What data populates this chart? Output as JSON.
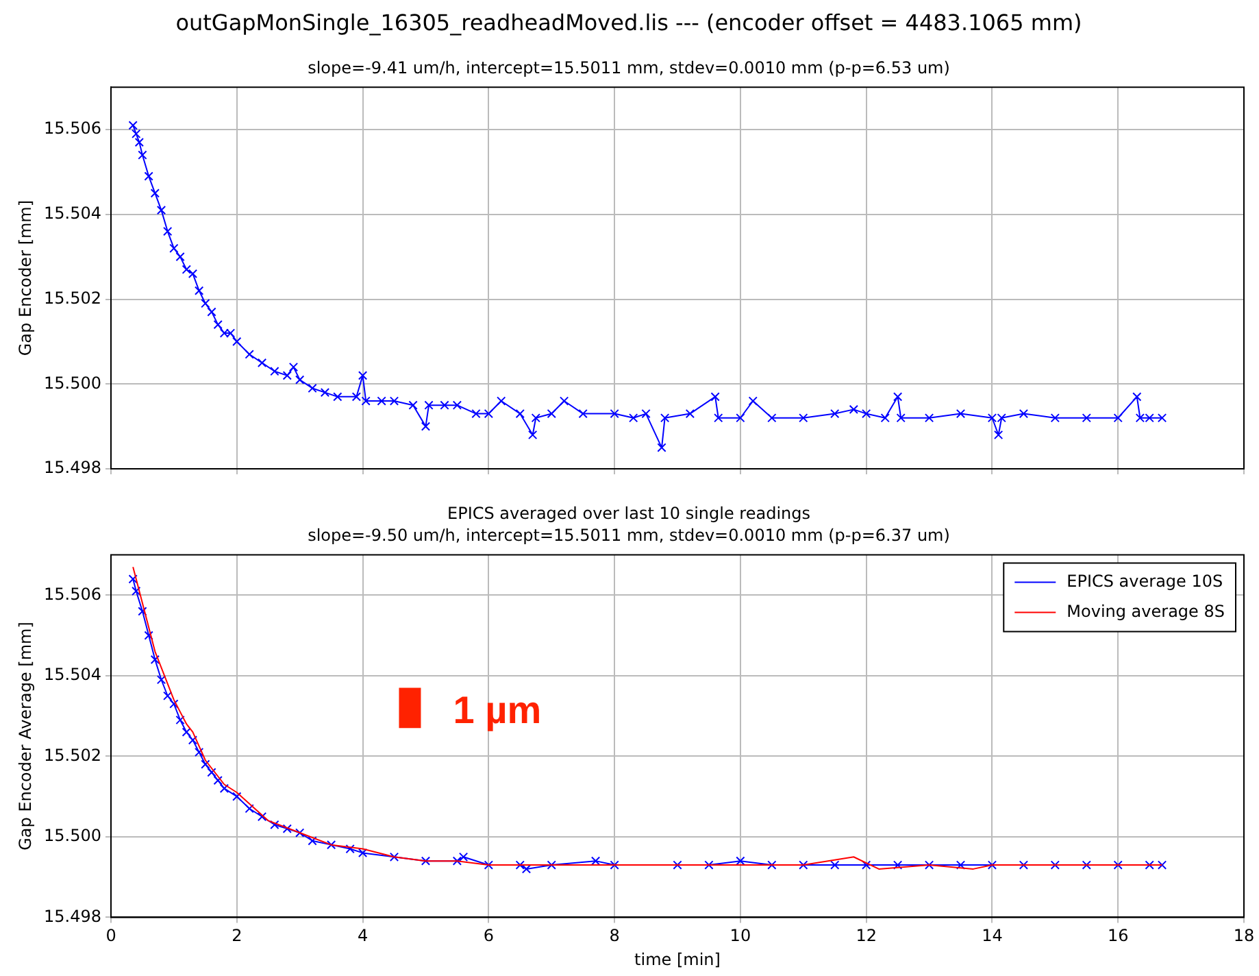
{
  "chart_data": [
    {
      "type": "line",
      "title": "outGapMonSingle_16305_readheadMoved.lis --- (encoder offset = 4483.1065 mm)",
      "subtitle": "slope=-9.41 um/h, intercept=15.5011 mm, stdev=0.0010 mm (p-p=6.53 um)",
      "ylabel": "Gap Encoder [mm]",
      "xlim": [
        0,
        18
      ],
      "xticks": [
        0,
        2,
        4,
        6,
        8,
        10,
        12,
        14,
        16,
        18
      ],
      "ylim": [
        15.498,
        15.507
      ],
      "yticks": [
        {
          "value": 15.498,
          "label": "15.498"
        },
        {
          "value": 15.5,
          "label": "15.500"
        },
        {
          "value": 15.502,
          "label": "15.502"
        },
        {
          "value": 15.504,
          "label": "15.504"
        },
        {
          "value": 15.506,
          "label": "15.506"
        }
      ],
      "tick_labels": "y",
      "grid": true,
      "marker": "cross",
      "line_style": "solid",
      "series": [
        {
          "color": "#0000ff",
          "x": [
            0.35,
            0.4,
            0.45,
            0.5,
            0.6,
            0.7,
            0.8,
            0.9,
            1.0,
            1.1,
            1.2,
            1.3,
            1.4,
            1.5,
            1.6,
            1.7,
            1.8,
            1.9,
            2.0,
            2.2,
            2.4,
            2.6,
            2.8,
            2.9,
            3.0,
            3.2,
            3.4,
            3.6,
            3.9,
            4.0,
            4.05,
            4.3,
            4.5,
            4.8,
            5.0,
            5.05,
            5.3,
            5.5,
            5.8,
            6.0,
            6.2,
            6.5,
            6.7,
            6.75,
            7.0,
            7.2,
            7.5,
            8.0,
            8.3,
            8.5,
            8.75,
            8.8,
            9.2,
            9.6,
            9.65,
            10.0,
            10.2,
            10.5,
            11.0,
            11.5,
            11.8,
            12.0,
            12.3,
            12.5,
            12.55,
            13.0,
            13.5,
            14.0,
            14.1,
            14.15,
            14.5,
            15.0,
            15.5,
            16.0,
            16.3,
            16.35,
            16.5,
            16.7
          ],
          "values": [
            15.5061,
            15.5059,
            15.5057,
            15.5054,
            15.5049,
            15.5045,
            15.5041,
            15.5036,
            15.5032,
            15.503,
            15.5027,
            15.5026,
            15.5022,
            15.5019,
            15.5017,
            15.5014,
            15.5012,
            15.5012,
            15.501,
            15.5007,
            15.5005,
            15.5003,
            15.5002,
            15.5004,
            15.5001,
            15.4999,
            15.4998,
            15.4997,
            15.4997,
            15.5002,
            15.4996,
            15.4996,
            15.4996,
            15.4995,
            15.499,
            15.4995,
            15.4995,
            15.4995,
            15.4993,
            15.4993,
            15.4996,
            15.4993,
            15.4988,
            15.4992,
            15.4993,
            15.4996,
            15.4993,
            15.4993,
            15.4992,
            15.4993,
            15.4985,
            15.4992,
            15.4993,
            15.4997,
            15.4992,
            15.4992,
            15.4996,
            15.4992,
            15.4992,
            15.4993,
            15.4994,
            15.4993,
            15.4992,
            15.4997,
            15.4992,
            15.4992,
            15.4993,
            15.4992,
            15.4988,
            15.4992,
            15.4993,
            15.4992,
            15.4992,
            15.4992,
            15.4997,
            15.4992,
            15.4992,
            15.4992
          ]
        }
      ]
    },
    {
      "type": "line",
      "title": "EPICS averaged over last 10 single readings",
      "subtitle": "slope=-9.50 um/h, intercept=15.5011 mm, stdev=0.0010 mm (p-p=6.37 um)",
      "xlabel": "time [min]",
      "ylabel": "Gap Encoder Average [mm]",
      "xlim": [
        0,
        18
      ],
      "xticks": [
        0,
        2,
        4,
        6,
        8,
        10,
        12,
        14,
        16,
        18
      ],
      "ylim": [
        15.498,
        15.507
      ],
      "yticks": [
        {
          "value": 15.498,
          "label": "15.498"
        },
        {
          "value": 15.5,
          "label": "15.500"
        },
        {
          "value": 15.502,
          "label": "15.502"
        },
        {
          "value": 15.504,
          "label": "15.504"
        },
        {
          "value": 15.506,
          "label": "15.506"
        }
      ],
      "grid": true,
      "legend": "top right",
      "marker": "cross",
      "line_style": "solid",
      "annotations": [
        "1 µm"
      ],
      "series": [
        {
          "name": "EPICS average 10S",
          "color": "#0000ff",
          "x": [
            0.35,
            0.4,
            0.5,
            0.6,
            0.7,
            0.8,
            0.9,
            1.0,
            1.1,
            1.2,
            1.3,
            1.4,
            1.5,
            1.6,
            1.7,
            1.8,
            2.0,
            2.2,
            2.4,
            2.6,
            2.8,
            3.0,
            3.2,
            3.5,
            3.8,
            4.0,
            4.5,
            5.0,
            5.5,
            5.6,
            6.0,
            6.5,
            6.6,
            7.0,
            7.7,
            8.0,
            9.0,
            9.5,
            10.0,
            10.5,
            11.0,
            11.5,
            12.0,
            12.5,
            13.0,
            13.5,
            14.0,
            14.5,
            15.0,
            15.5,
            16.0,
            16.5,
            16.7
          ],
          "values": [
            15.5064,
            15.5061,
            15.5056,
            15.505,
            15.5044,
            15.5039,
            15.5035,
            15.5033,
            15.5029,
            15.5026,
            15.5024,
            15.5021,
            15.5018,
            15.5016,
            15.5014,
            15.5012,
            15.501,
            15.5007,
            15.5005,
            15.5003,
            15.5002,
            15.5001,
            15.4999,
            15.4998,
            15.4997,
            15.4996,
            15.4995,
            15.4994,
            15.4994,
            15.4995,
            15.4993,
            15.4993,
            15.4992,
            15.4993,
            15.4994,
            15.4993,
            15.4993,
            15.4993,
            15.4994,
            15.4993,
            15.4993,
            15.4993,
            15.4993,
            15.4993,
            15.4993,
            15.4993,
            15.4993,
            15.4993,
            15.4993,
            15.4993,
            15.4993,
            15.4993,
            15.4993
          ]
        },
        {
          "name": "Moving average 8S",
          "color": "#ff0000",
          "marker": "none",
          "x": [
            0.35,
            0.5,
            0.7,
            1.0,
            1.2,
            1.3,
            1.5,
            1.8,
            2.0,
            2.5,
            3.0,
            3.5,
            4.0,
            4.5,
            5.0,
            5.5,
            6.0,
            6.5,
            7.0,
            8.0,
            9.0,
            10.0,
            11.0,
            11.8,
            12.2,
            13.0,
            13.7,
            14.0,
            15.0,
            16.0,
            16.7
          ],
          "values": [
            15.5067,
            15.5058,
            15.5046,
            15.5034,
            15.5028,
            15.5026,
            15.5019,
            15.5013,
            15.5011,
            15.5004,
            15.5001,
            15.4998,
            15.4997,
            15.4995,
            15.4994,
            15.4994,
            15.4993,
            15.4993,
            15.4993,
            15.4993,
            15.4993,
            15.4993,
            15.4993,
            15.4995,
            15.4992,
            15.4993,
            15.4992,
            15.4993,
            15.4993,
            15.4993,
            15.4993
          ]
        },
        {
          "color": "#ff2200",
          "marker": "none",
          "x": [
            4.75,
            4.75
          ],
          "values": [
            15.5027,
            15.5037
          ]
        }
      ]
    }
  ]
}
